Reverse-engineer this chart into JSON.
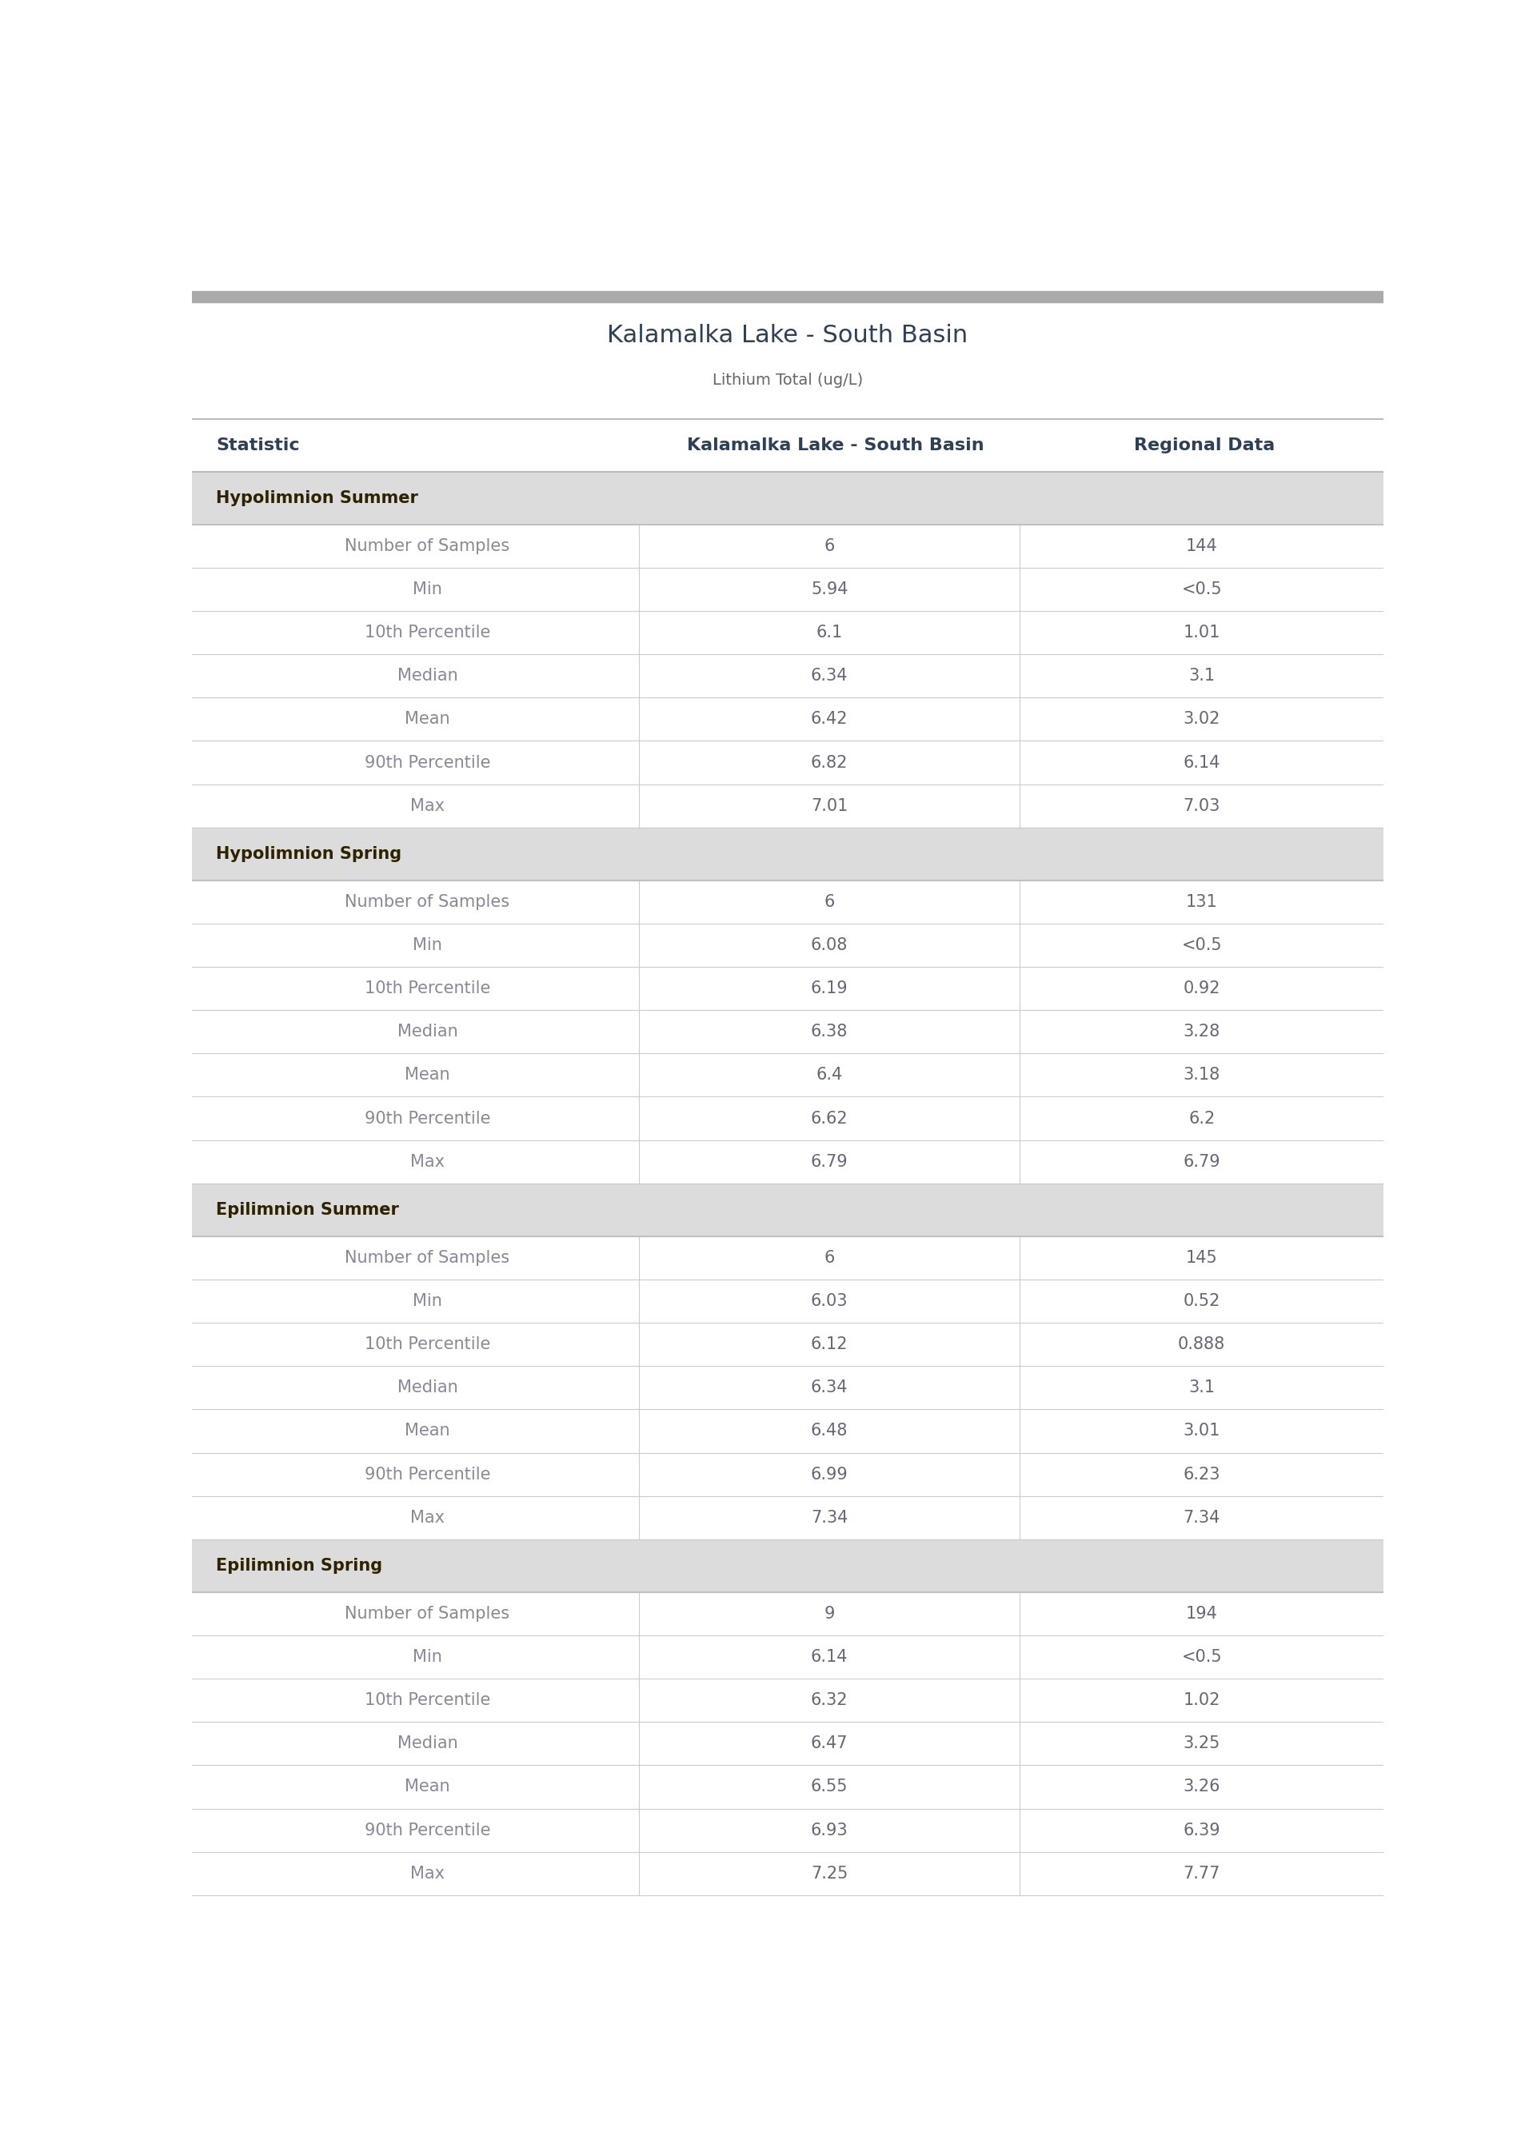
{
  "title": "Kalamalka Lake - South Basin",
  "subtitle": "Lithium Total (ug/L)",
  "col_headers": [
    "Statistic",
    "Kalamalka Lake - South Basin",
    "Regional Data"
  ],
  "sections": [
    {
      "name": "Hypolimnion Summer",
      "rows": [
        [
          "Number of Samples",
          "6",
          "144"
        ],
        [
          "Min",
          "5.94",
          "<0.5"
        ],
        [
          "10th Percentile",
          "6.1",
          "1.01"
        ],
        [
          "Median",
          "6.34",
          "3.1"
        ],
        [
          "Mean",
          "6.42",
          "3.02"
        ],
        [
          "90th Percentile",
          "6.82",
          "6.14"
        ],
        [
          "Max",
          "7.01",
          "7.03"
        ]
      ]
    },
    {
      "name": "Hypolimnion Spring",
      "rows": [
        [
          "Number of Samples",
          "6",
          "131"
        ],
        [
          "Min",
          "6.08",
          "<0.5"
        ],
        [
          "10th Percentile",
          "6.19",
          "0.92"
        ],
        [
          "Median",
          "6.38",
          "3.28"
        ],
        [
          "Mean",
          "6.4",
          "3.18"
        ],
        [
          "90th Percentile",
          "6.62",
          "6.2"
        ],
        [
          "Max",
          "6.79",
          "6.79"
        ]
      ]
    },
    {
      "name": "Epilimnion Summer",
      "rows": [
        [
          "Number of Samples",
          "6",
          "145"
        ],
        [
          "Min",
          "6.03",
          "0.52"
        ],
        [
          "10th Percentile",
          "6.12",
          "0.888"
        ],
        [
          "Median",
          "6.34",
          "3.1"
        ],
        [
          "Mean",
          "6.48",
          "3.01"
        ],
        [
          "90th Percentile",
          "6.99",
          "6.23"
        ],
        [
          "Max",
          "7.34",
          "7.34"
        ]
      ]
    },
    {
      "name": "Epilimnion Spring",
      "rows": [
        [
          "Number of Samples",
          "9",
          "194"
        ],
        [
          "Min",
          "6.14",
          "<0.5"
        ],
        [
          "10th Percentile",
          "6.32",
          "1.02"
        ],
        [
          "Median",
          "6.47",
          "3.25"
        ],
        [
          "Mean",
          "6.55",
          "3.26"
        ],
        [
          "90th Percentile",
          "6.93",
          "6.39"
        ],
        [
          "Max",
          "7.25",
          "7.77"
        ]
      ]
    }
  ],
  "title_color": "#2E4057",
  "subtitle_color": "#666666",
  "header_text_color": "#2E4057",
  "section_header_bg": "#DCDCDC",
  "section_header_text_color": "#2E2200",
  "col1_text_color": "#888899",
  "data_text_color": "#666677",
  "line_color": "#CCCCCC",
  "header_line_color": "#BBBBBB",
  "top_bar_color": "#AAAAAA",
  "bg_color": "#FFFFFF",
  "title_fontsize": 22,
  "subtitle_fontsize": 14,
  "header_fontsize": 16,
  "section_fontsize": 15,
  "data_fontsize": 15
}
